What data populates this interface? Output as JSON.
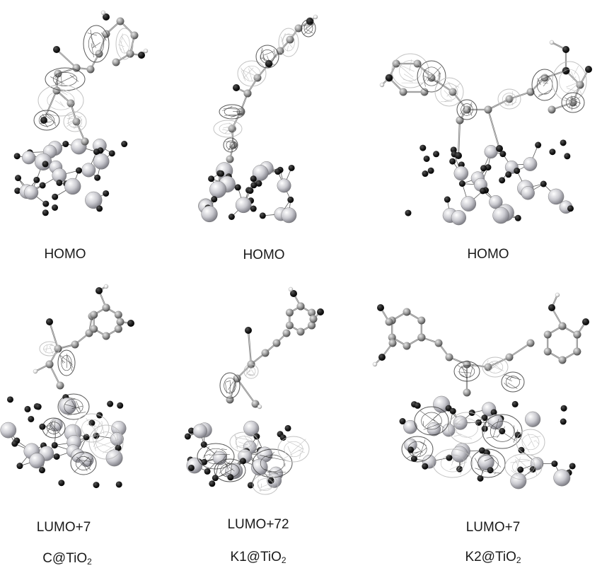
{
  "top_row": {
    "labels": [
      "HOMO",
      "HOMO",
      "HOMO"
    ]
  },
  "bottom_row": {
    "labels": [
      "LUMO+7",
      "LUMO+72",
      "LUMO+7"
    ]
  },
  "systems": [
    {
      "main": "C@TiO",
      "sub": "2"
    },
    {
      "main": "K1@TiO",
      "sub": "2"
    },
    {
      "main": "K2@TiO",
      "sub": "2"
    }
  ],
  "colors": {
    "oxygen": "#1e1e1e",
    "titanium": "#c9c9cf",
    "carbon": "#9a9a9a",
    "hydrogen": "#ffffff",
    "orbital_dark": "#3a3a3a",
    "orbital_light": "#b8b8b8"
  }
}
